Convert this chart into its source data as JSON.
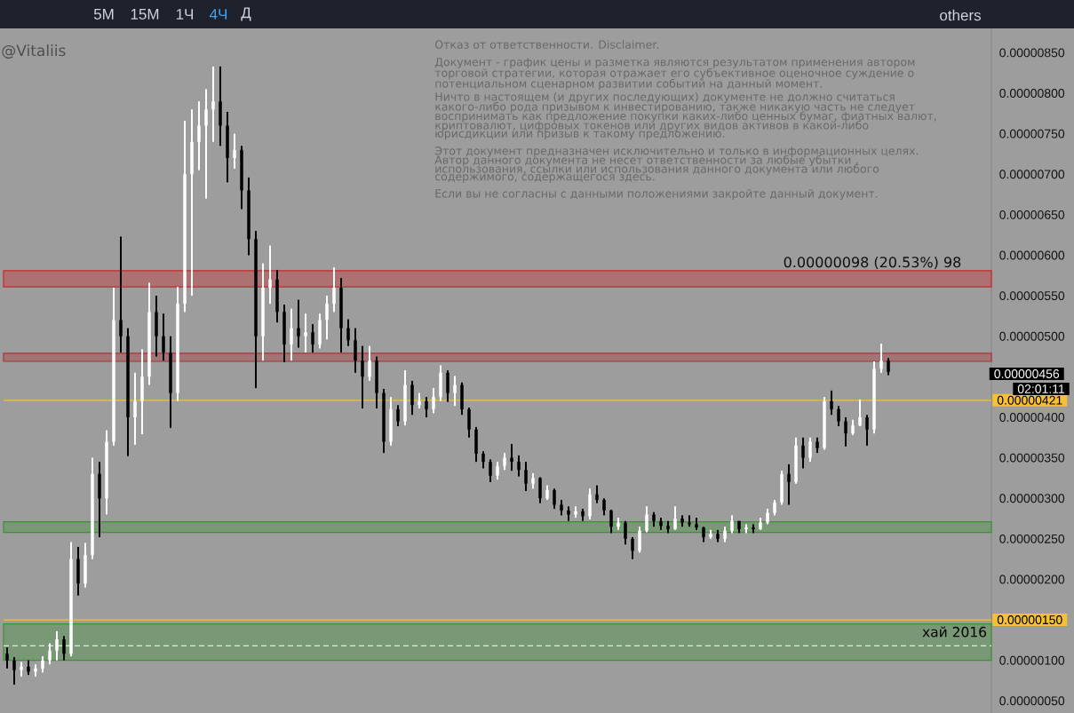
{
  "chart_data": {
    "type": "candlestick",
    "categories": [
      null,
      null,
      null,
      null,
      null,
      null,
      null,
      null,
      null,
      null,
      null,
      null,
      null,
      null,
      null,
      null,
      null,
      null,
      null,
      null,
      null,
      null,
      null,
      null,
      null,
      null,
      null,
      null,
      null,
      null,
      null,
      null,
      null,
      null,
      null,
      null,
      null,
      null,
      null,
      null,
      null,
      null,
      null,
      null,
      null,
      null,
      null,
      null,
      null,
      null,
      null,
      null,
      null,
      null,
      null,
      null,
      null,
      null,
      null,
      null,
      null,
      null,
      null,
      null,
      null,
      null,
      null,
      null,
      null,
      null,
      null,
      null,
      null,
      null,
      null,
      null,
      null,
      null,
      null,
      null,
      null,
      null,
      null,
      null,
      null,
      null,
      null,
      null,
      null,
      null,
      null,
      null,
      null,
      null,
      null,
      null,
      null,
      null,
      null,
      null,
      null,
      null,
      null,
      null,
      null,
      null,
      null,
      null,
      null,
      null,
      null,
      null,
      null,
      null,
      null,
      null,
      null,
      null,
      null,
      null,
      null,
      null,
      null,
      null,
      null,
      null,
      null,
      null,
      null,
      null,
      null,
      null,
      null,
      null,
      null,
      null,
      null,
      null,
      null
    ],
    "ohlc": [
      [
        1.08e-06,
        1.16e-06,
        9e-07,
        1e-06
      ],
      [
        1e-06,
        1.04e-06,
        7e-07,
        8.8e-07
      ],
      [
        8.8e-07,
        9.8e-07,
        8e-07,
        9.2e-07
      ],
      [
        9.2e-07,
        1e-06,
        8.2e-07,
        8.6e-07
      ],
      [
        8.6e-07,
        9.5e-07,
        8e-07,
        9e-07
      ],
      [
        9e-07,
        1.05e-06,
        8.5e-07,
        1e-06
      ],
      [
        1e-06,
        1.21e-06,
        9.5e-07,
        1.12e-06
      ],
      [
        1.12e-06,
        1.36e-06,
        1e-06,
        1.26e-06
      ],
      [
        1.26e-06,
        1.3e-06,
        1e-06,
        1.08e-06
      ],
      [
        1.08e-06,
        2.46e-06,
        1.05e-06,
        2.25e-06
      ],
      [
        2.25e-06,
        2.4e-06,
        1.8e-06,
        1.95e-06
      ],
      [
        1.95e-06,
        2.45e-06,
        1.9e-06,
        2.3e-06
      ],
      [
        2.3e-06,
        3.5e-06,
        2.25e-06,
        3.3e-06
      ],
      [
        3.3e-06,
        3.45e-06,
        2.52e-06,
        3e-06
      ],
      [
        3e-06,
        3.84e-06,
        2.8e-06,
        3.7e-06
      ],
      [
        3.7e-06,
        5.6e-06,
        3.65e-06,
        5.2e-06
      ],
      [
        5.2e-06,
        6.23e-06,
        4.8e-06,
        5e-06
      ],
      [
        5e-06,
        5.1e-06,
        3.52e-06,
        4e-06
      ],
      [
        4e-06,
        4.55e-06,
        3.66e-06,
        4.2e-06
      ],
      [
        4.2e-06,
        4.84e-06,
        3.79e-06,
        4.5e-06
      ],
      [
        4.5e-06,
        5.66e-06,
        4.4e-06,
        5.3e-06
      ],
      [
        5.3e-06,
        5.5e-06,
        4.75e-06,
        5e-06
      ],
      [
        5e-06,
        5.28e-06,
        4.7e-06,
        4.8e-06
      ],
      [
        4.8e-06,
        5e-06,
        3.87e-06,
        4.3e-06
      ],
      [
        4.3e-06,
        5.61e-06,
        4.2e-06,
        5.4e-06
      ],
      [
        5.4e-06,
        7.66e-06,
        5.3e-06,
        7e-06
      ],
      [
        7e-06,
        7.8e-06,
        5.5e-06,
        7.4e-06
      ],
      [
        7.4e-06,
        7.9e-06,
        7.05e-06,
        7.6e-06
      ],
      [
        7.6e-06,
        8.05e-06,
        6.7e-06,
        7.8e-06
      ],
      [
        7.8e-06,
        8.33e-06,
        7.4e-06,
        7.9e-06
      ],
      [
        7.9e-06,
        8.33e-06,
        7.35e-06,
        7.6e-06
      ],
      [
        7.6e-06,
        7.77e-06,
        6.9e-06,
        7.2e-06
      ],
      [
        7.2e-06,
        7.5e-06,
        7.07e-06,
        7.3e-06
      ],
      [
        7.3e-06,
        7.35e-06,
        6.57e-06,
        6.8e-06
      ],
      [
        6.8e-06,
        6.96e-06,
        6e-06,
        6.2e-06
      ],
      [
        6.2e-06,
        6.3e-06,
        4.36e-06,
        5e-06
      ],
      [
        5e-06,
        5.9e-06,
        4.7e-06,
        5.6e-06
      ],
      [
        5.6e-06,
        6.12e-06,
        5.4e-06,
        5.7e-06
      ],
      [
        5.7e-06,
        5.82e-06,
        5.17e-06,
        5.3e-06
      ],
      [
        5.3e-06,
        5.39e-06,
        4.68e-06,
        4.9e-06
      ],
      [
        4.9e-06,
        5.34e-06,
        4.7e-06,
        5.1e-06
      ],
      [
        5.1e-06,
        5.45e-06,
        4.86e-06,
        5e-06
      ],
      [
        5e-06,
        5.28e-06,
        4.8e-06,
        5.05e-06
      ],
      [
        5.05e-06,
        5.15e-06,
        4.8e-06,
        4.9e-06
      ],
      [
        4.9e-06,
        5.28e-06,
        4.85e-06,
        5.2e-06
      ],
      [
        5.2e-06,
        5.5e-06,
        4.96e-06,
        5.4e-06
      ],
      [
        5.4e-06,
        5.85e-06,
        5.3e-06,
        5.6e-06
      ],
      [
        5.6e-06,
        5.72e-06,
        4.8e-06,
        5.1e-06
      ],
      [
        5.1e-06,
        5.21e-06,
        4.88e-06,
        4.95e-06
      ],
      [
        4.95e-06,
        5.1e-06,
        4.55e-06,
        4.7e-06
      ],
      [
        4.7e-06,
        4.88e-06,
        4.11e-06,
        4.5e-06
      ],
      [
        4.5e-06,
        4.88e-06,
        4.45e-06,
        4.7e-06
      ],
      [
        4.7e-06,
        4.75e-06,
        4.11e-06,
        4.3e-06
      ],
      [
        4.3e-06,
        4.35e-06,
        3.56e-06,
        3.7e-06
      ],
      [
        3.7e-06,
        4.25e-06,
        3.65e-06,
        4.1e-06
      ],
      [
        4.1e-06,
        4.15e-06,
        3.89e-06,
        3.95e-06
      ],
      [
        3.95e-06,
        4.58e-06,
        3.9e-06,
        4.4e-06
      ],
      [
        4.4e-06,
        4.45e-06,
        4.03e-06,
        4.15e-06
      ],
      [
        4.15e-06,
        4.3e-06,
        4.11e-06,
        4.2e-06
      ],
      [
        4.2e-06,
        4.25e-06,
        4e-06,
        4.1e-06
      ],
      [
        4.1e-06,
        4.36e-06,
        4.05e-06,
        4.25e-06
      ],
      [
        4.25e-06,
        4.64e-06,
        4.2e-06,
        4.55e-06
      ],
      [
        4.55e-06,
        4.58e-06,
        4.19e-06,
        4.3e-06
      ],
      [
        4.3e-06,
        4.51e-06,
        4.14e-06,
        4.4e-06
      ],
      [
        4.4e-06,
        4.43e-06,
        4.03e-06,
        4.1e-06
      ],
      [
        4.1e-06,
        4.12e-06,
        3.75e-06,
        3.85e-06
      ],
      [
        3.85e-06,
        3.88e-06,
        3.45e-06,
        3.55e-06
      ],
      [
        3.55e-06,
        3.58e-06,
        3.37e-06,
        3.45e-06
      ],
      [
        3.45e-06,
        3.48e-06,
        3.2e-06,
        3.28e-06
      ],
      [
        3.28e-06,
        3.45e-06,
        3.23e-06,
        3.4e-06
      ],
      [
        3.4e-06,
        3.56e-06,
        3.35e-06,
        3.5e-06
      ],
      [
        3.5e-06,
        3.67e-06,
        3.34e-06,
        3.45e-06
      ],
      [
        3.45e-06,
        3.53e-06,
        3.27e-06,
        3.35e-06
      ],
      [
        3.35e-06,
        3.45e-06,
        3.09e-06,
        3.18e-06
      ],
      [
        3.18e-06,
        3.31e-06,
        3.12e-06,
        3.25e-06
      ],
      [
        3.25e-06,
        3.26e-06,
        2.94e-06,
        3e-06
      ],
      [
        3e-06,
        3.16e-06,
        2.98e-06,
        3.1e-06
      ],
      [
        3.1e-06,
        3.12e-06,
        2.87e-06,
        2.92e-06
      ],
      [
        2.92e-06,
        2.98e-06,
        2.79e-06,
        2.85e-06
      ],
      [
        2.85e-06,
        2.9e-06,
        2.72e-06,
        2.8e-06
      ],
      [
        2.8e-06,
        2.9e-06,
        2.76e-06,
        2.84e-06
      ],
      [
        2.84e-06,
        2.87e-06,
        2.72e-06,
        2.78e-06
      ],
      [
        2.78e-06,
        3.12e-06,
        2.74e-06,
        3.05e-06
      ],
      [
        3.05e-06,
        3.16e-06,
        2.94e-06,
        2.98e-06
      ],
      [
        2.98e-06,
        3e-06,
        2.79e-06,
        2.85e-06
      ],
      [
        2.85e-06,
        2.86e-06,
        2.57e-06,
        2.65e-06
      ],
      [
        2.65e-06,
        2.76e-06,
        2.61e-06,
        2.7e-06
      ],
      [
        2.7e-06,
        2.72e-06,
        2.43e-06,
        2.5e-06
      ],
      [
        2.5e-06,
        2.52e-06,
        2.25e-06,
        2.35e-06
      ],
      [
        2.35e-06,
        2.65e-06,
        2.33e-06,
        2.6e-06
      ],
      [
        2.6e-06,
        2.9e-06,
        2.58e-06,
        2.8e-06
      ],
      [
        2.8e-06,
        2.83e-06,
        2.65e-06,
        2.72e-06
      ],
      [
        2.72e-06,
        2.76e-06,
        2.61e-06,
        2.66e-06
      ],
      [
        2.66e-06,
        2.72e-06,
        2.57e-06,
        2.62e-06
      ],
      [
        2.62e-06,
        2.9e-06,
        2.61e-06,
        2.75e-06
      ],
      [
        2.75e-06,
        2.79e-06,
        2.65e-06,
        2.7e-06
      ],
      [
        2.7e-06,
        2.79e-06,
        2.65e-06,
        2.68e-06
      ],
      [
        2.68e-06,
        2.76e-06,
        2.61e-06,
        2.64e-06
      ],
      [
        2.64e-06,
        2.65e-06,
        2.46e-06,
        2.52e-06
      ],
      [
        2.52e-06,
        2.61e-06,
        2.5e-06,
        2.56e-06
      ],
      [
        2.56e-06,
        2.61e-06,
        2.46e-06,
        2.5e-06
      ],
      [
        2.5e-06,
        2.65e-06,
        2.46e-06,
        2.6e-06
      ],
      [
        2.6e-06,
        2.79e-06,
        2.57e-06,
        2.72e-06
      ],
      [
        2.72e-06,
        2.72e-06,
        2.57e-06,
        2.62e-06
      ],
      [
        2.62e-06,
        2.68e-06,
        2.57e-06,
        2.64e-06
      ],
      [
        2.64e-06,
        2.68e-06,
        2.57e-06,
        2.62e-06
      ],
      [
        2.62e-06,
        2.76e-06,
        2.61e-06,
        2.7e-06
      ],
      [
        2.7e-06,
        2.87e-06,
        2.68e-06,
        2.82e-06
      ],
      [
        2.82e-06,
        2.98e-06,
        2.79e-06,
        2.95e-06
      ],
      [
        2.95e-06,
        3.34e-06,
        2.92e-06,
        3.3e-06
      ],
      [
        3.3e-06,
        3.42e-06,
        2.92e-06,
        3.2e-06
      ],
      [
        3.2e-06,
        3.75e-06,
        3.18e-06,
        3.65e-06
      ],
      [
        3.65e-06,
        3.75e-06,
        3.37e-06,
        3.5e-06
      ],
      [
        3.5e-06,
        3.75e-06,
        3.45e-06,
        3.7e-06
      ],
      [
        3.7e-06,
        3.75e-06,
        3.56e-06,
        3.62e-06
      ],
      [
        3.62e-06,
        4.25e-06,
        3.6e-06,
        4.2e-06
      ],
      [
        4.2e-06,
        4.33e-06,
        4.03e-06,
        4.1e-06
      ],
      [
        4.1e-06,
        4.14e-06,
        3.89e-06,
        3.95e-06
      ],
      [
        3.95e-06,
        4e-06,
        3.64e-06,
        3.8e-06
      ],
      [
        3.8e-06,
        3.97e-06,
        3.78e-06,
        3.9e-06
      ],
      [
        3.9e-06,
        4.22e-06,
        3.89e-06,
        4e-06
      ],
      [
        4e-06,
        4.03e-06,
        3.65e-06,
        3.85e-06
      ],
      [
        3.85e-06,
        4.69e-06,
        3.8e-06,
        4.6e-06
      ],
      [
        4.6e-06,
        4.91e-06,
        4.55e-06,
        4.7e-06
      ],
      [
        4.7e-06,
        4.73e-06,
        4.52e-06,
        4.56e-06
      ],
      null,
      null,
      null,
      null,
      null,
      null,
      null,
      null,
      null,
      null,
      null,
      null,
      null,
      null
    ],
    "colors": [
      "#000000",
      "#000000",
      "#ffffff",
      "#000000",
      "#ffffff",
      "#ffffff",
      "#ffffff",
      "#ffffff",
      "#000000",
      "#ffffff",
      "#000000",
      "#ffffff",
      "#ffffff",
      "#000000",
      "#ffffff",
      "#ffffff",
      "#000000",
      "#000000",
      "#ffffff",
      "#ffffff",
      "#ffffff",
      "#000000",
      "#000000",
      "#000000",
      "#ffffff",
      "#ffffff",
      "#ffffff",
      "#ffffff",
      "#ffffff",
      "#ffffff",
      "#000000",
      "#000000",
      "#ffffff",
      "#000000",
      "#000000",
      "#000000",
      "#ffffff",
      "#ffffff",
      "#000000",
      "#000000",
      "#ffffff",
      "#000000",
      "#ffffff",
      "#000000",
      "#ffffff",
      "#ffffff",
      "#ffffff",
      "#000000",
      "#000000",
      "#000000",
      "#000000",
      "#ffffff",
      "#000000",
      "#000000",
      "#ffffff",
      "#000000",
      "#ffffff",
      "#000000",
      "#ffffff",
      "#000000",
      "#ffffff",
      "#ffffff",
      "#000000",
      "#ffffff",
      "#000000",
      "#000000",
      "#000000",
      "#000000",
      "#000000",
      "#ffffff",
      "#ffffff",
      "#000000",
      "#000000",
      "#000000",
      "#ffffff",
      "#000000",
      "#ffffff",
      "#000000",
      "#000000",
      "#000000",
      "#ffffff",
      "#000000",
      "#ffffff",
      "#000000",
      "#000000",
      "#000000",
      "#ffffff",
      "#000000",
      "#000000",
      "#ffffff",
      "#ffffff",
      "#000000",
      "#000000",
      "#000000",
      "#ffffff",
      "#000000",
      "#000000",
      "#000000",
      "#000000",
      "#ffffff",
      "#000000",
      "#ffffff",
      "#ffffff",
      "#000000",
      "#ffffff",
      "#000000",
      "#ffffff",
      "#ffffff",
      "#ffffff",
      "#ffffff",
      "#000000",
      "#ffffff",
      "#000000",
      "#ffffff",
      "#000000",
      "#ffffff",
      "#000000",
      "#000000",
      "#000000",
      "#ffffff",
      "#ffffff",
      "#000000",
      "#ffffff",
      "#ffffff",
      "#000000",
      null,
      null,
      null,
      null,
      null,
      null,
      null,
      null,
      null,
      null,
      null,
      null,
      null,
      null
    ],
    "ylim": [
      3.5e-07,
      8.8e-06
    ],
    "yticks": [
      {
        "value": 5e-07,
        "label": "0.00000050"
      },
      {
        "value": 1e-06,
        "label": "0.00000100"
      },
      {
        "value": 2e-06,
        "label": "0.00000200"
      },
      {
        "value": 2.5e-06,
        "label": "0.00000250"
      },
      {
        "value": 3e-06,
        "label": "0.00000300"
      },
      {
        "value": 3.5e-06,
        "label": "0.00000350"
      },
      {
        "value": 4e-06,
        "label": "0.00000400"
      },
      {
        "value": 5e-06,
        "label": "0.00000500"
      },
      {
        "value": 5.5e-06,
        "label": "0.00000550"
      },
      {
        "value": 6e-06,
        "label": "0.00000600"
      },
      {
        "value": 6.5e-06,
        "label": "0.00000650"
      },
      {
        "value": 7e-06,
        "label": "0.00000700"
      },
      {
        "value": 7.5e-06,
        "label": "0.00000750"
      },
      {
        "value": 8e-06,
        "label": "0.00000800"
      },
      {
        "value": 8.5e-06,
        "label": "0.00000850"
      }
    ],
    "tick_labels": "y",
    "bands": [
      {
        "axis": "y",
        "from": 5.61e-06,
        "to": 5.81e-06,
        "color": "#c62828"
      },
      {
        "axis": "y",
        "from": 4.69e-06,
        "to": 4.79e-06,
        "color": "#a83434"
      },
      {
        "axis": "y",
        "from": 2.58e-06,
        "to": 2.71e-06,
        "color": "#3f8f35"
      },
      {
        "axis": "y",
        "from": 1e-06,
        "to": 1.45e-06,
        "color": "#3f8f35",
        "label": "хай 2016"
      }
    ],
    "ref_lines": [
      {
        "axis": "y",
        "value": 4.21e-06,
        "label": "0.00000421",
        "color": "#f5c033"
      },
      {
        "axis": "y",
        "value": 1.5e-06,
        "label": "0.00000150",
        "color": "#f5c033"
      },
      {
        "axis": "y",
        "value": 1.18e-06,
        "color": "#ffffff",
        "line_style": "dashed"
      }
    ],
    "annotations": [
      "5M",
      "15M",
      "1Ч",
      "4Ч",
      "Д",
      "others",
      "@Vitaliis",
      "Отказ от ответственности. Disclaimer.",
      "Документ - график цены и разметка являются результатом применения автором",
      "торговой стратегии, которая отражает его субъективное оценочное суждение о",
      "потенциальном сценарном развитии событий на данный момент.",
      "Ничто в настоящем (и других последующих) документе не должно считаться",
      "какого-либо рода призывом к инвестированию, также никакую часть не следует",
      "воспринимать как предложение покупки каких-либо ценных бумаг, фиатных валют,",
      "криптовалют, цифровых токенов или других видов активов в какой-либо",
      "юрисдикции или призыв к такому предложению.",
      "Этот документ предназначен исключительно и только в информационных целях.",
      "Автор данного документа не несет ответственности за любые убытки ,",
      "использования, ссылки или использования данного документа или любого",
      "содержимого, содержащегося здесь.",
      "Если вы не согласны с данными положениями закройте данный документ.",
      "0.00000098 (20.53%) 98",
      "0.00000456",
      "02:01:11"
    ]
  }
}
